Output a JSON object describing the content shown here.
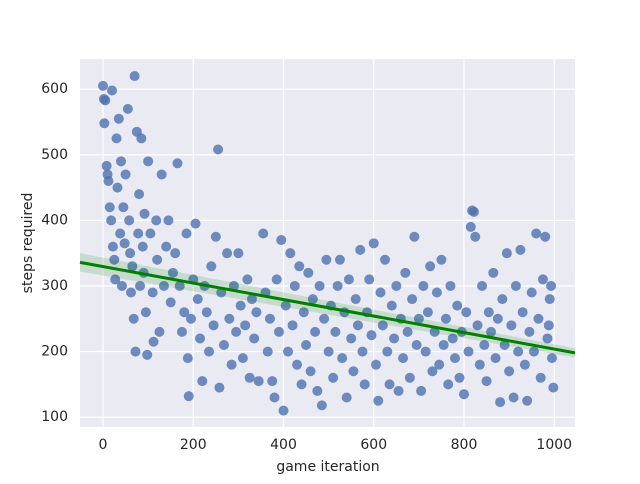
{
  "chart_data": {
    "type": "scatter",
    "x_label": "game iteration",
    "y_label": "steps required",
    "xlim": [
      -51,
      1046
    ],
    "ylim": [
      85,
      646
    ],
    "xticks": [
      0,
      200,
      400,
      600,
      800,
      1000
    ],
    "yticks": [
      100,
      200,
      300,
      400,
      500,
      600
    ],
    "grid": true,
    "background": "#eaeaf2",
    "series": [
      {
        "color": "#4c72b0",
        "x": [
          0,
          2,
          5,
          3,
          8,
          10,
          12,
          15,
          18,
          20,
          22,
          25,
          27,
          30,
          32,
          35,
          38,
          40,
          42,
          45,
          48,
          50,
          55,
          58,
          60,
          62,
          65,
          68,
          70,
          72,
          75,
          78,
          80,
          82,
          85,
          88,
          90,
          92,
          95,
          98,
          100,
          105,
          110,
          112,
          118,
          120,
          125,
          130,
          135,
          140,
          145,
          150,
          155,
          160,
          165,
          170,
          175,
          180,
          185,
          188,
          190,
          195,
          200,
          205,
          210,
          215,
          220,
          225,
          230,
          235,
          240,
          245,
          250,
          255,
          258,
          262,
          268,
          275,
          280,
          285,
          290,
          295,
          300,
          305,
          310,
          315,
          320,
          325,
          330,
          335,
          340,
          345,
          355,
          360,
          365,
          370,
          375,
          380,
          385,
          390,
          395,
          400,
          405,
          410,
          415,
          420,
          425,
          430,
          435,
          440,
          445,
          450,
          455,
          460,
          465,
          470,
          475,
          480,
          485,
          490,
          495,
          500,
          505,
          510,
          515,
          520,
          525,
          530,
          535,
          540,
          545,
          550,
          555,
          560,
          565,
          570,
          575,
          580,
          585,
          590,
          595,
          600,
          605,
          610,
          615,
          620,
          625,
          630,
          635,
          640,
          645,
          650,
          655,
          660,
          665,
          670,
          675,
          680,
          685,
          690,
          695,
          700,
          705,
          710,
          715,
          720,
          725,
          730,
          735,
          740,
          745,
          750,
          755,
          760,
          765,
          770,
          775,
          780,
          785,
          790,
          795,
          800,
          805,
          810,
          815,
          818,
          822,
          825,
          830,
          835,
          840,
          845,
          850,
          855,
          860,
          865,
          870,
          875,
          880,
          885,
          890,
          895,
          900,
          905,
          910,
          915,
          920,
          925,
          930,
          935,
          940,
          945,
          950,
          955,
          960,
          965,
          970,
          975,
          980,
          985,
          990,
          995,
          998,
          993,
          988
        ],
        "values": [
          605,
          585,
          583,
          548,
          483,
          470,
          460,
          420,
          400,
          598,
          360,
          340,
          310,
          525,
          450,
          555,
          380,
          490,
          300,
          420,
          365,
          470,
          570,
          400,
          350,
          290,
          330,
          250,
          620,
          200,
          535,
          380,
          440,
          300,
          525,
          360,
          320,
          410,
          260,
          195,
          490,
          380,
          290,
          215,
          400,
          340,
          230,
          470,
          300,
          360,
          400,
          275,
          320,
          350,
          487,
          300,
          230,
          260,
          380,
          190,
          132,
          250,
          310,
          395,
          280,
          220,
          155,
          300,
          260,
          200,
          330,
          240,
          375,
          508,
          145,
          290,
          210,
          350,
          250,
          180,
          300,
          230,
          350,
          270,
          190,
          240,
          310,
          160,
          280,
          220,
          260,
          155,
          380,
          290,
          200,
          250,
          155,
          130,
          310,
          230,
          370,
          110,
          270,
          200,
          350,
          240,
          300,
          180,
          330,
          150,
          260,
          210,
          320,
          170,
          280,
          230,
          140,
          300,
          118,
          250,
          340,
          200,
          270,
          160,
          230,
          300,
          340,
          190,
          260,
          130,
          310,
          220,
          170,
          280,
          240,
          355,
          200,
          150,
          260,
          310,
          225,
          365,
          180,
          125,
          290,
          240,
          340,
          200,
          150,
          270,
          220,
          300,
          140,
          250,
          190,
          320,
          230,
          160,
          280,
          375,
          210,
          250,
          140,
          300,
          200,
          260,
          330,
          170,
          230,
          290,
          180,
          340,
          210,
          250,
          150,
          300,
          220,
          190,
          270,
          160,
          230,
          135,
          260,
          200,
          390,
          415,
          413,
          375,
          240,
          180,
          300,
          210,
          155,
          260,
          230,
          320,
          190,
          250,
          123,
          280,
          210,
          350,
          170,
          240,
          130,
          300,
          200,
          355,
          260,
          180,
          125,
          230,
          290,
          200,
          380,
          250,
          160,
          310,
          375,
          220,
          280,
          190,
          145,
          300,
          240
        ]
      }
    ],
    "regression": {
      "color": "#008000",
      "x": [
        -51,
        1046
      ],
      "values": [
        336,
        198
      ],
      "lower": [
        322,
        191
      ],
      "upper": [
        350,
        205
      ]
    }
  }
}
